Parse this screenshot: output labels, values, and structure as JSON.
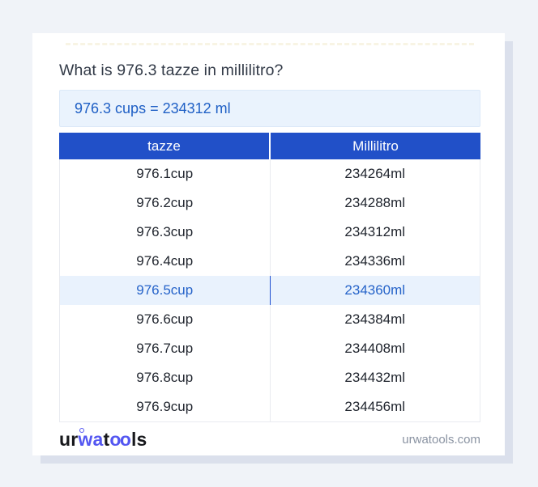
{
  "header": {
    "title": "What is 976.3 tazze in millilitro?",
    "result": "976.3 cups = 234312 ml"
  },
  "table": {
    "headers": [
      "tazze",
      "Millilitro"
    ],
    "rows": [
      {
        "tazze": "976.1cup",
        "millilitro": "234264ml",
        "highlighted": false
      },
      {
        "tazze": "976.2cup",
        "millilitro": "234288ml",
        "highlighted": false
      },
      {
        "tazze": "976.3cup",
        "millilitro": "234312ml",
        "highlighted": false
      },
      {
        "tazze": "976.4cup",
        "millilitro": "234336ml",
        "highlighted": false
      },
      {
        "tazze": "976.5cup",
        "millilitro": "234360ml",
        "highlighted": true
      },
      {
        "tazze": "976.6cup",
        "millilitro": "234384ml",
        "highlighted": false
      },
      {
        "tazze": "976.7cup",
        "millilitro": "234408ml",
        "highlighted": false
      },
      {
        "tazze": "976.8cup",
        "millilitro": "234432ml",
        "highlighted": false
      },
      {
        "tazze": "976.9cup",
        "millilitro": "234456ml",
        "highlighted": false
      }
    ]
  },
  "footer": {
    "logo_segments": [
      {
        "text": "ur",
        "color": "dark"
      },
      {
        "text": "wa",
        "color": "blue",
        "ring": true
      },
      {
        "text": "t",
        "color": "dark"
      },
      {
        "text": "oo",
        "color": "blue",
        "tight": true
      },
      {
        "text": "ls",
        "color": "dark"
      }
    ],
    "domain": "urwatools.com"
  },
  "colors": {
    "page_bg": "#f0f3f8",
    "card_shadow": "#dbe0ec",
    "table_header_blue": "#2150c8",
    "highlight_row_bg": "#e9f2fd",
    "highlight_text_blue": "#2563c9",
    "result_box_bg": "#eaf3fd",
    "result_text_blue": "#1e5fc5",
    "logo_blue": "#5457f1"
  }
}
